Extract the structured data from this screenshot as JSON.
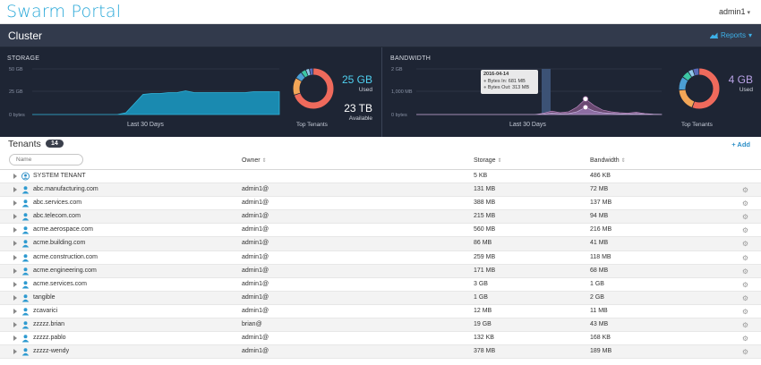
{
  "app": {
    "title": "Swarm Portal",
    "user": "admin1"
  },
  "cluster": {
    "title": "Cluster",
    "reports_label": "Reports"
  },
  "storage": {
    "title": "STORAGE",
    "y_ticks": [
      "50 GB",
      "25 GB",
      "0 bytes"
    ],
    "caption": "Last 30 Days",
    "used_value": "25 GB",
    "used_label": "Used",
    "available_value": "23 TB",
    "available_label": "Available",
    "donut_caption": "Top Tenants",
    "used_color": "#4fd0f0"
  },
  "bandwidth": {
    "title": "BANDWIDTH",
    "y_ticks": [
      "2 GB",
      "1,000 MB",
      "0 bytes"
    ],
    "caption": "Last 30 Days",
    "used_value": "4 GB",
    "used_label": "Used",
    "donut_caption": "Top Tenants",
    "used_color": "#b9a2e6",
    "tooltip": {
      "date": "2016-04-14",
      "bytes_in": "Bytes In: 681 MB",
      "bytes_out": "Bytes Out: 313 MB"
    }
  },
  "chart_data": [
    {
      "type": "area",
      "title": "STORAGE",
      "xlabel": "Last 30 Days",
      "yticks": [
        "0 bytes",
        "25 GB",
        "50 GB"
      ],
      "ylim": [
        0,
        50
      ],
      "y_unit": "GB",
      "series": [
        {
          "values": [
            0,
            0,
            0,
            0,
            0,
            0,
            0,
            0,
            0,
            0,
            0,
            2,
            12,
            22,
            23,
            23,
            24,
            24,
            26,
            24,
            24,
            24,
            24,
            24,
            24,
            24,
            25,
            25,
            25,
            25
          ]
        }
      ]
    },
    {
      "type": "area",
      "title": "BANDWIDTH",
      "xlabel": "Last 30 Days",
      "yticks": [
        "0 bytes",
        "1,000 MB",
        "2 GB"
      ],
      "ylim": [
        0,
        2000
      ],
      "y_unit": "MB",
      "series": [
        {
          "name": "Bytes In",
          "values": [
            0,
            0,
            0,
            0,
            0,
            0,
            0,
            0,
            0,
            0,
            0,
            0,
            0,
            0,
            0,
            50,
            150,
            80,
            120,
            330,
            681,
            400,
            200,
            120,
            80,
            60,
            100,
            40,
            20,
            10
          ]
        },
        {
          "name": "Bytes Out",
          "values": [
            0,
            0,
            0,
            0,
            0,
            0,
            0,
            0,
            0,
            0,
            0,
            0,
            0,
            0,
            0,
            20,
            60,
            30,
            40,
            120,
            313,
            150,
            80,
            50,
            30,
            20,
            40,
            15,
            10,
            5
          ]
        }
      ]
    },
    {
      "type": "pie",
      "title": "Top Tenants",
      "values": [
        70,
        14,
        6,
        4,
        3,
        3
      ]
    },
    {
      "type": "pie",
      "title": "Top Tenants",
      "values": [
        56,
        18,
        11,
        6,
        4,
        5
      ]
    }
  ],
  "tenants": {
    "title": "Tenants",
    "count": "14",
    "add_label": "+ Add",
    "name_placeholder": "Name",
    "columns": {
      "owner": "Owner",
      "storage": "Storage",
      "bandwidth": "Bandwidth"
    },
    "rows": [
      {
        "name": "SYSTEM TENANT",
        "owner": "",
        "storage": "5 KB",
        "bandwidth": "486 KB",
        "system": true
      },
      {
        "name": "abc.manufacturing.com",
        "owner": "admin1@",
        "storage": "131 MB",
        "bandwidth": "72 MB"
      },
      {
        "name": "abc.services.com",
        "owner": "admin1@",
        "storage": "388 MB",
        "bandwidth": "137 MB"
      },
      {
        "name": "abc.telecom.com",
        "owner": "admin1@",
        "storage": "215 MB",
        "bandwidth": "94 MB"
      },
      {
        "name": "acme.aerospace.com",
        "owner": "admin1@",
        "storage": "560 MB",
        "bandwidth": "216 MB"
      },
      {
        "name": "acme.building.com",
        "owner": "admin1@",
        "storage": "86 MB",
        "bandwidth": "41 MB"
      },
      {
        "name": "acme.construction.com",
        "owner": "admin1@",
        "storage": "259 MB",
        "bandwidth": "118 MB"
      },
      {
        "name": "acme.engineering.com",
        "owner": "admin1@",
        "storage": "171 MB",
        "bandwidth": "68 MB"
      },
      {
        "name": "acme.services.com",
        "owner": "admin1@",
        "storage": "3 GB",
        "bandwidth": "1 GB"
      },
      {
        "name": "tangible",
        "owner": "admin1@",
        "storage": "1 GB",
        "bandwidth": "2 GB"
      },
      {
        "name": "zcavarici",
        "owner": "admin1@",
        "storage": "12 MB",
        "bandwidth": "11 MB"
      },
      {
        "name": "zzzzz.brian",
        "owner": "brian@",
        "storage": "19 GB",
        "bandwidth": "43 MB"
      },
      {
        "name": "zzzzz.pablo",
        "owner": "admin1@",
        "storage": "132 KB",
        "bandwidth": "168 KB"
      },
      {
        "name": "zzzzz-wendy",
        "owner": "admin1@",
        "storage": "378 MB",
        "bandwidth": "189 MB"
      }
    ]
  }
}
